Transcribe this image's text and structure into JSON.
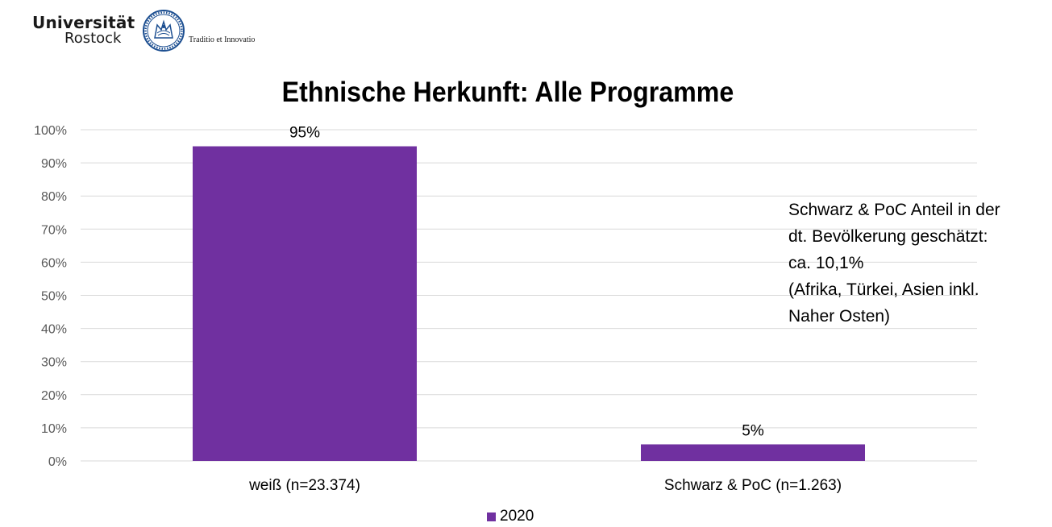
{
  "logo": {
    "name_line1": "Universität",
    "name_line2": "Rostock",
    "motto": "Traditio et Innovatio",
    "seal_icon": "university-seal-icon"
  },
  "colors": {
    "bar": "#7030a0",
    "grid": "#d9d9d9",
    "seal": "#1d4f91"
  },
  "chart_data": {
    "type": "bar",
    "title": "Ethnische Herkunft: Alle Programme",
    "categories": [
      "weiß (n=23.374)",
      "Schwarz & PoC (n=1.263)"
    ],
    "series": [
      {
        "name": "2020",
        "values": [
          95,
          5
        ]
      }
    ],
    "data_labels": [
      "95%",
      "5%"
    ],
    "y_ticks": [
      "0%",
      "10%",
      "20%",
      "30%",
      "40%",
      "50%",
      "60%",
      "70%",
      "80%",
      "90%",
      "100%"
    ],
    "ylim": [
      0,
      100
    ],
    "grid": true,
    "legend_position": "bottom",
    "annotation": [
      "Schwarz & PoC Anteil in der",
      "dt. Bevölkerung geschätzt:",
      "ca. 10,1%",
      "(Afrika, Türkei, Asien inkl.",
      "Naher Osten)"
    ]
  }
}
